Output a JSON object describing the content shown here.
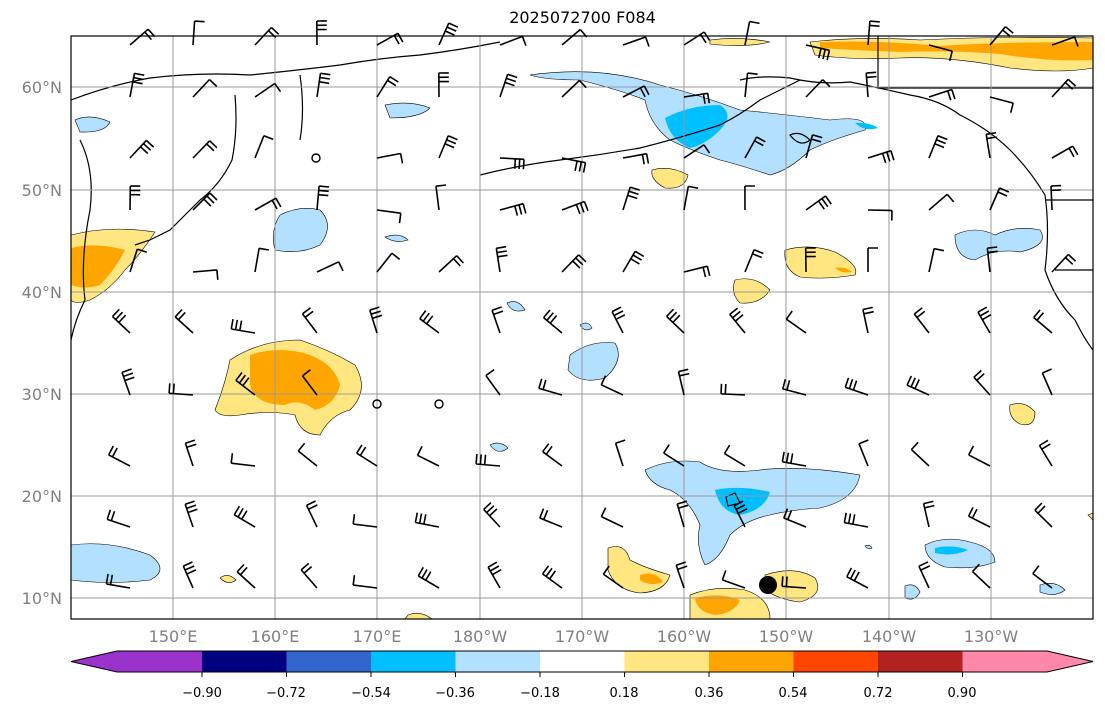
{
  "title": "2025072700 F084",
  "lat_labels": [
    "60°N",
    "50°N",
    "40°N",
    "30°N",
    "20°N",
    "10°N"
  ],
  "lon_labels": [
    "150°E",
    "160°E",
    "170°E",
    "180°W",
    "170°W",
    "160°W",
    "150°W",
    "140°W",
    "130°W"
  ],
  "colorbar": {
    "ticks": [
      "−0.90",
      "−0.72",
      "−0.54",
      "−0.36",
      "−0.18",
      "0.18",
      "0.36",
      "0.54",
      "0.72",
      "0.90"
    ],
    "colors": [
      "#9933cc",
      "#000080",
      "#3366cc",
      "#00bfff",
      "#b3e0ff",
      "#ffffff",
      "#ffe680",
      "#ffa500",
      "#ff4500",
      "#b22222",
      "#ff88aa"
    ]
  },
  "colors": {
    "light_blue": "#b3e0ff",
    "mid_blue": "#00bfff",
    "light_yellow": "#ffe680",
    "orange": "#ffa500",
    "gridline": "#999999",
    "coastline": "#000000"
  },
  "marker": "storm-center-dot"
}
